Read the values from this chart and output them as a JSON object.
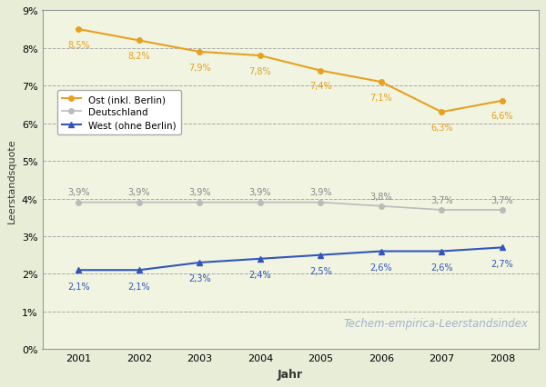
{
  "years": [
    2001,
    2002,
    2003,
    2004,
    2005,
    2006,
    2007,
    2008
  ],
  "ost": [
    8.5,
    8.2,
    7.9,
    7.8,
    7.4,
    7.1,
    6.3,
    6.6
  ],
  "deutschland": [
    3.9,
    3.9,
    3.9,
    3.9,
    3.9,
    3.8,
    3.7,
    3.7
  ],
  "west": [
    2.1,
    2.1,
    2.3,
    2.4,
    2.5,
    2.6,
    2.6,
    2.7
  ],
  "ost_labels": [
    "8,5%",
    "8,2%",
    "7,9%",
    "7,8%",
    "7,4%",
    "7,1%",
    "6,3%",
    "6,6%"
  ],
  "deutschland_labels": [
    "3,9%",
    "3,9%",
    "3,9%",
    "3,9%",
    "3,9%",
    "3,8%",
    "3,7%",
    "3,7%"
  ],
  "west_labels": [
    "2,1%",
    "2,1%",
    "2,3%",
    "2,4%",
    "2,5%",
    "2,6%",
    "2,6%",
    "2,7%"
  ],
  "ost_color": "#E8A020",
  "deutschland_color": "#BBBBBB",
  "west_color": "#3355BB",
  "bg_color": "#E8EDD8",
  "plot_bg_color": "#F0F4E0",
  "grid_color": "#AAAAAA",
  "ylabel": "Leerstandsquote",
  "xlabel": "Jahr",
  "ylim": [
    0,
    9
  ],
  "yticks": [
    0,
    1,
    2,
    3,
    4,
    5,
    6,
    7,
    8,
    9
  ],
  "watermark": "Techem-empirica-Leerstandsindex",
  "legend_labels": [
    "Ost (inkl. Berlin)",
    "Deutschland",
    "West (ohne Berlin)"
  ],
  "ost_label_dy": [
    -0.28,
    -0.28,
    -0.28,
    -0.28,
    -0.28,
    -0.28,
    -0.28,
    -0.28
  ],
  "de_label_dy": [
    0.15,
    0.15,
    0.15,
    0.15,
    0.15,
    0.15,
    0.15,
    0.15
  ],
  "west_label_dy": [
    -0.3,
    -0.3,
    -0.3,
    -0.3,
    -0.3,
    -0.3,
    -0.3,
    -0.3
  ]
}
